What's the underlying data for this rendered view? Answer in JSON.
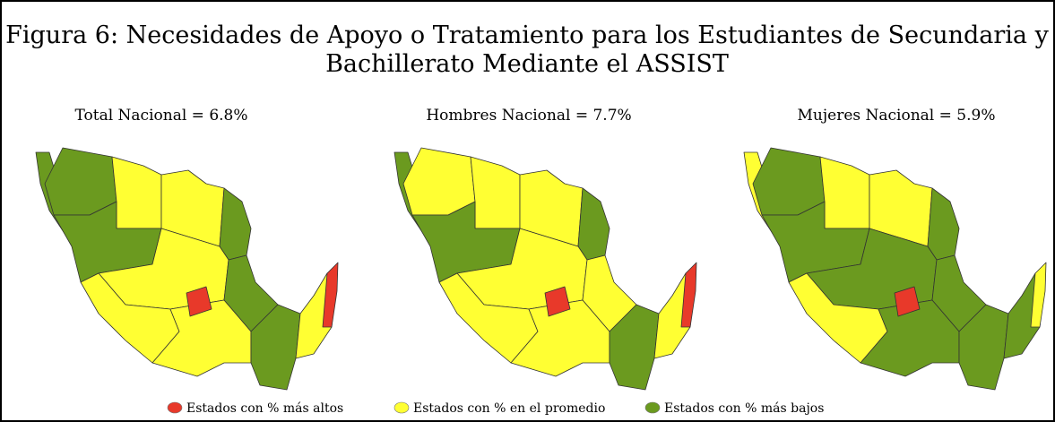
{
  "title": "Figura 6: Necesidades de Apoyo o Tratamiento para los Estudiantes de Secundaria y Bachillerato Mediante el ASSIST",
  "maps": [
    {
      "label": "Total Nacional = 6.8%"
    },
    {
      "label": "Hombres Nacional = 7.7%"
    },
    {
      "label": "Mujeres Nacional = 5.9%"
    }
  ],
  "legend": [
    {
      "label": "Estados con % más altos",
      "color": "#e8392a"
    },
    {
      "label": "Estados con % en el promedio",
      "color": "#ffff33"
    },
    {
      "label": "Estados con % más bajos",
      "color": "#6b9a1f"
    }
  ]
}
